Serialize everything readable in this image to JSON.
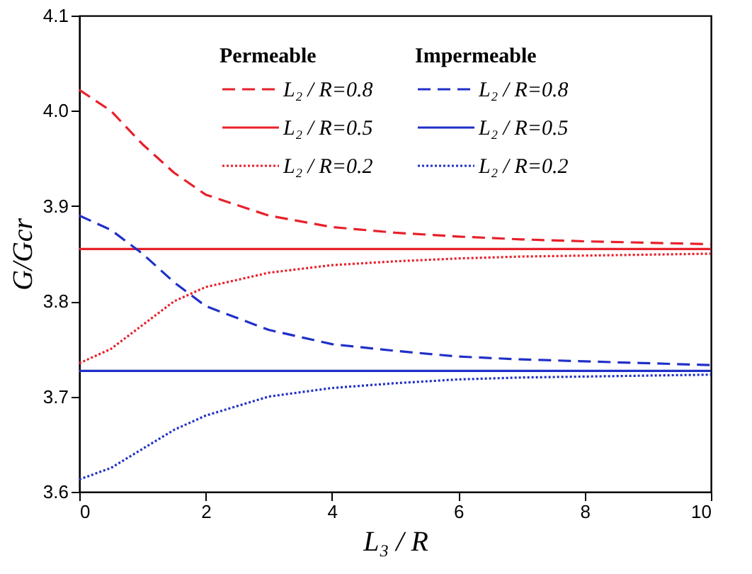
{
  "chart_data": {
    "type": "line",
    "xlabel": "L₃ / R",
    "ylabel": "G/Gcr",
    "x": [
      0,
      0.5,
      1,
      1.5,
      2,
      3,
      4,
      5,
      6,
      7,
      8,
      10
    ],
    "xlim": [
      0,
      10
    ],
    "xticks": [
      0,
      2,
      4,
      6,
      8,
      10
    ],
    "ylim": [
      3.6,
      4.1
    ],
    "yticks": [
      3.6,
      3.7,
      3.8,
      3.9,
      {
        "value": 4,
        "label": "4.0"
      },
      4.1
    ],
    "grid": false,
    "legend": "top right",
    "marker": "none",
    "annotations": [
      "Permeable",
      "Impermeable"
    ],
    "series": [
      {
        "name": "L₂ / R=0.8",
        "color": "#e8202a",
        "line_style": "dashed",
        "values": [
          4.022,
          4.0,
          3.965,
          3.935,
          3.912,
          3.89,
          3.878,
          3.872,
          3.868,
          3.865,
          3.863,
          3.86
        ]
      },
      {
        "name": "L₂ / R=0.5",
        "color": "#e8202a",
        "line_style": "solid",
        "values": [
          3.855,
          3.855,
          3.855,
          3.855,
          3.855,
          3.855,
          3.855,
          3.855,
          3.855,
          3.855,
          3.855,
          3.855
        ]
      },
      {
        "name": "L₂ / R=0.2",
        "color": "#e8202a",
        "line_style": "dotted",
        "values": [
          3.735,
          3.75,
          3.775,
          3.8,
          3.815,
          3.83,
          3.838,
          3.842,
          3.845,
          3.847,
          3.848,
          3.85
        ]
      },
      {
        "name": "L₂ / R=0.8",
        "color": "#2030c8",
        "line_style": "dashed",
        "values": [
          3.89,
          3.875,
          3.85,
          3.82,
          3.795,
          3.77,
          3.755,
          3.748,
          3.742,
          3.739,
          3.737,
          3.733
        ]
      },
      {
        "name": "L₂ / R=0.5",
        "color": "#2030c8",
        "line_style": "solid",
        "values": [
          3.727,
          3.727,
          3.727,
          3.727,
          3.727,
          3.727,
          3.727,
          3.727,
          3.727,
          3.727,
          3.727,
          3.727
        ]
      },
      {
        "name": "L₂ / R=0.2",
        "color": "#2030c8",
        "line_style": "dotted",
        "values": [
          3.613,
          3.625,
          3.645,
          3.665,
          3.68,
          3.7,
          3.709,
          3.714,
          3.718,
          3.72,
          3.721,
          3.723
        ]
      }
    ]
  }
}
